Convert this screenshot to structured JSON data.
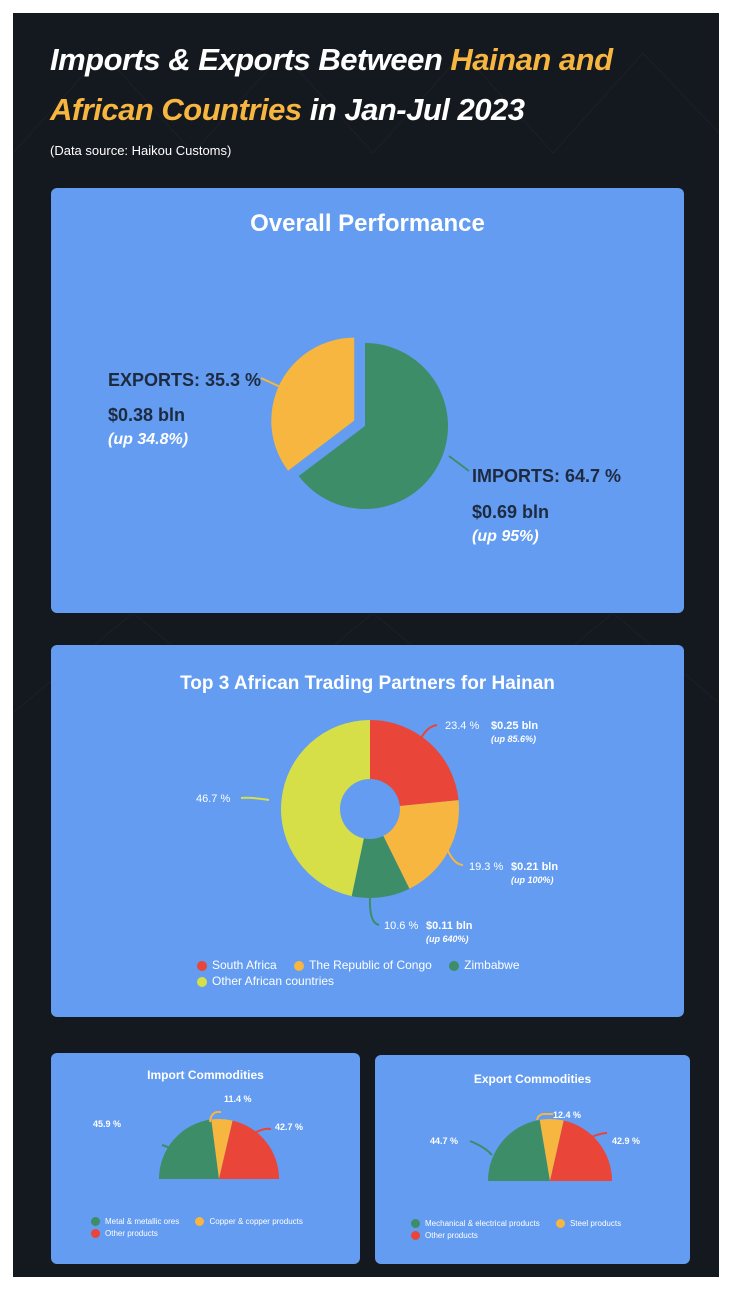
{
  "header": {
    "title_part1": "Imports & Exports Between ",
    "title_highlight1": "Hainan and",
    "title_highlight2": "African Countries",
    "title_part2": " in Jan-Jul 2023",
    "source": "(Data source: Haikou Customs)"
  },
  "colors": {
    "background": "#14181f",
    "panel": "#639cf0",
    "highlight": "#f6b63f",
    "green": "#3d8d68",
    "yellow": "#f6b63f",
    "red": "#e94538",
    "lime": "#d6df48"
  },
  "chart_data": [
    {
      "type": "pie",
      "title": "Overall Performance",
      "slices": [
        {
          "label": "IMPORTS: 64.7 %",
          "value": 64.7,
          "amount": "$0.69 bln",
          "growth": "(up 95%)",
          "color": "#3d8d68"
        },
        {
          "label": "EXPORTS: 35.3 %",
          "value": 35.3,
          "amount": "$0.38 bln",
          "growth": "(up 34.8%)",
          "color": "#f6b63f"
        }
      ]
    },
    {
      "type": "pie",
      "subtype": "donut",
      "title": "Top 3 African Trading Partners for Hainan",
      "slices": [
        {
          "name": "South Africa",
          "value": 23.4,
          "pct_label": "23.4 %",
          "amount": "$0.25 bln",
          "growth": "(up 85.6%)",
          "color": "#e94538"
        },
        {
          "name": "The Republic of Congo",
          "value": 19.3,
          "pct_label": "19.3 %",
          "amount": "$0.21 bln",
          "growth": "(up 100%)",
          "color": "#f6b63f"
        },
        {
          "name": "Zimbabwe",
          "value": 10.6,
          "pct_label": "10.6 %",
          "amount": "$0.11 bln",
          "growth": "(up 640%)",
          "color": "#3d8d68"
        },
        {
          "name": "Other African countries",
          "value": 46.7,
          "pct_label": "46.7 %",
          "amount": "",
          "growth": "",
          "color": "#d6df48"
        }
      ],
      "legend": "bottom"
    },
    {
      "type": "pie",
      "subtype": "half",
      "title": "Import Commodities",
      "slices": [
        {
          "name": "Metal & metallic ores",
          "value": 45.9,
          "pct_label": "45.9 %",
          "color": "#3d8d68"
        },
        {
          "name": "Copper & copper products",
          "value": 11.4,
          "pct_label": "11.4 %",
          "color": "#f6b63f"
        },
        {
          "name": "Other products",
          "value": 42.7,
          "pct_label": "42.7 %",
          "color": "#e94538"
        }
      ],
      "legend": "bottom"
    },
    {
      "type": "pie",
      "subtype": "half",
      "title": "Export Commodities",
      "slices": [
        {
          "name": "Mechanical & electrical products",
          "value": 44.7,
          "pct_label": "44.7 %",
          "color": "#3d8d68"
        },
        {
          "name": "Steel products",
          "value": 12.4,
          "pct_label": "12.4 %",
          "color": "#f6b63f"
        },
        {
          "name": "Other products",
          "value": 42.9,
          "pct_label": "42.9 %",
          "color": "#e94538"
        }
      ],
      "legend": "bottom"
    }
  ]
}
